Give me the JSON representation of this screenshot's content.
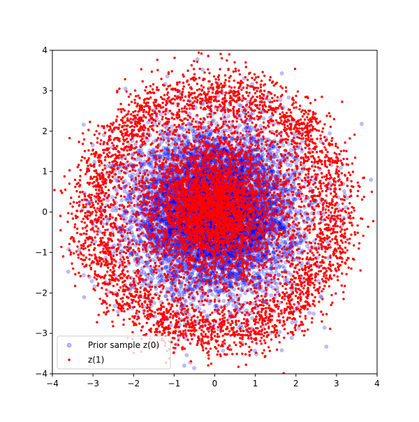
{
  "chart_data": {
    "type": "scatter",
    "title": "",
    "xlabel": "",
    "ylabel": "",
    "xlim": [
      -4,
      4
    ],
    "ylim": [
      -4,
      4
    ],
    "xticks": [
      -4,
      -3,
      -2,
      -1,
      0,
      1,
      2,
      3,
      4
    ],
    "yticks": [
      -4,
      -3,
      -2,
      -1,
      0,
      1,
      2,
      3,
      4
    ],
    "xtick_labels": [
      "−4",
      "−3",
      "−2",
      "−1",
      "0",
      "1",
      "2",
      "3",
      "4"
    ],
    "ytick_labels": [
      "−4",
      "−3",
      "−2",
      "−1",
      "0",
      "1",
      "2",
      "3",
      "4"
    ],
    "grid": false,
    "legend_position": "lower-left",
    "series": [
      {
        "name": "Prior sample z(0)",
        "color": "#0000ff",
        "alpha": 0.25,
        "marker": "circle",
        "distribution": "gaussian",
        "mean": [
          0,
          0
        ],
        "std": [
          1,
          1
        ],
        "n_points": 8000,
        "notable_points": [
          [
            3.85,
            0.8
          ],
          [
            -3.6,
            -0.92
          ],
          [
            2.75,
            -3.33
          ],
          [
            -0.75,
            -3.8
          ],
          [
            -0.6,
            -3.72
          ],
          [
            -2.2,
            3.05
          ],
          [
            -0.3,
            3.52
          ]
        ]
      },
      {
        "name": "z(1)",
        "color": "#ff0000",
        "alpha": 1.0,
        "marker": "circle",
        "distribution": "core-and-ring",
        "core_std": 0.75,
        "ring_radius": 3.0,
        "ring_width": 0.35,
        "n_points": 8000,
        "notable_points": [
          [
            3.87,
            0.5
          ],
          [
            0.3,
            3.75
          ],
          [
            -3.55,
            -1.05
          ],
          [
            0.3,
            -3.52
          ],
          [
            -2.35,
            3.05
          ]
        ]
      }
    ]
  }
}
